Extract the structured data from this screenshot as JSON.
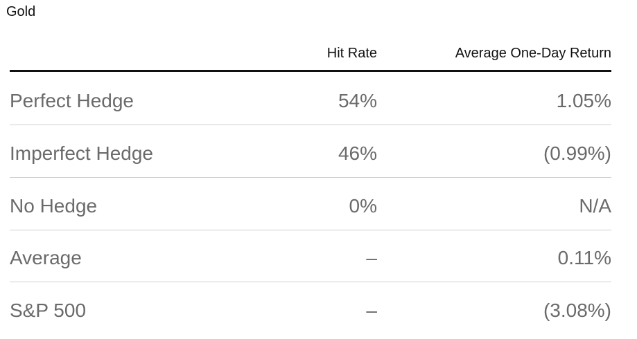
{
  "title": "Gold",
  "table": {
    "headers": [
      "Hit Rate",
      "Average One-Day Return"
    ],
    "rows": [
      [
        "Perfect Hedge",
        "54%",
        "1.05%"
      ],
      [
        "Imperfect Hedge",
        "46%",
        "(0.99%)"
      ],
      [
        "No Hedge",
        "0%",
        "N/A"
      ],
      [
        "Average",
        "–",
        "0.11%"
      ],
      [
        "S&P 500",
        "–",
        "(3.08%)"
      ]
    ]
  }
}
